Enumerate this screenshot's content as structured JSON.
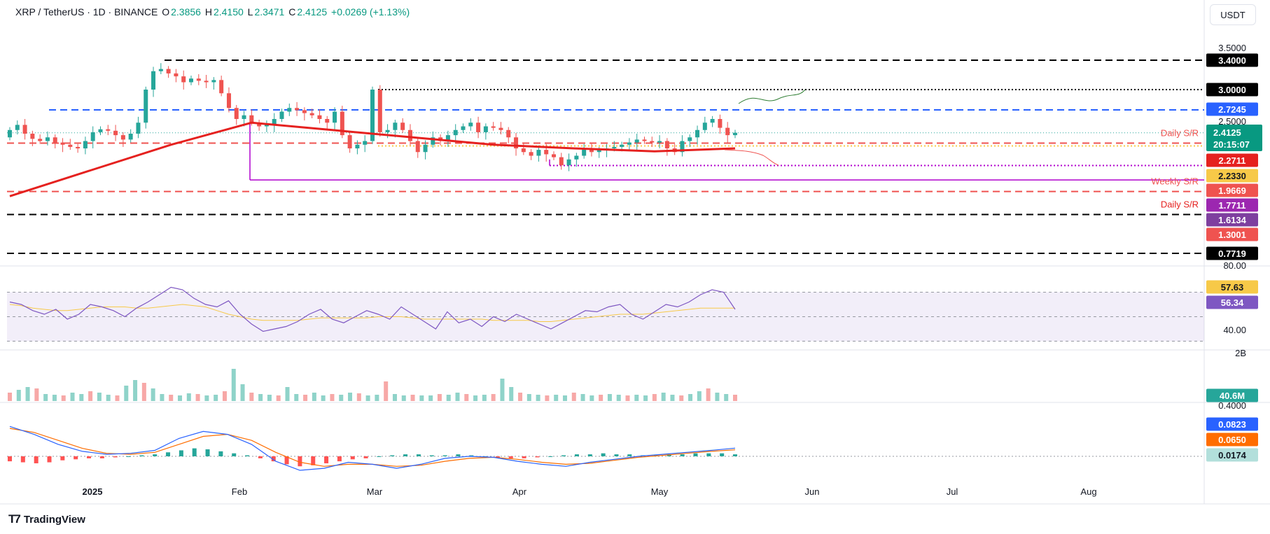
{
  "header": {
    "symbol": "XRP / TetherUS · 1D · BINANCE",
    "open_label": "O",
    "open": "2.3856",
    "high_label": "H",
    "high": "2.4150",
    "low_label": "L",
    "low": "2.3471",
    "close_label": "C",
    "close": "2.4125",
    "change": "+0.0269 (+1.13%)"
  },
  "currency_button": "USDT",
  "brand": "TradingView",
  "colors": {
    "up": "#26a69a",
    "down": "#ef5350",
    "ma": "#e5211f",
    "rsi": "#7e57c2",
    "rsi_ma": "#f7c948",
    "macd": "#2962ff",
    "signal": "#ff6d00",
    "support_line": "#b100cd",
    "resistance_blue": "#2962ff"
  },
  "chart_data": [
    {
      "type": "candlestick",
      "pane": "price",
      "symbol": "XRP / TetherUS",
      "timeframe": "1D",
      "ylim": [
        0.7,
        3.55
      ],
      "x_ticks": [
        "2025",
        "Feb",
        "Mar",
        "Apr",
        "May",
        "Jun",
        "Jul",
        "Aug"
      ],
      "y_ticks": [
        "3.5000",
        "2.5000"
      ],
      "current_price": "2.4125",
      "countdown": "20:15:07",
      "candles_approx_close": [
        2.45,
        2.52,
        2.4,
        2.33,
        2.3,
        2.35,
        2.28,
        2.25,
        2.22,
        2.2,
        2.3,
        2.42,
        2.46,
        2.44,
        2.38,
        2.32,
        2.4,
        2.55,
        3.0,
        3.25,
        3.28,
        3.22,
        3.18,
        3.1,
        3.15,
        3.12,
        3.1,
        3.13,
        2.95,
        2.75,
        2.6,
        2.65,
        2.55,
        2.5,
        2.52,
        2.6,
        2.7,
        2.75,
        2.72,
        2.68,
        2.65,
        2.6,
        2.55,
        2.7,
        2.38,
        2.2,
        2.25,
        2.3,
        3.0,
        2.42,
        2.45,
        2.55,
        2.45,
        2.3,
        2.15,
        2.25,
        2.35,
        2.3,
        2.38,
        2.45,
        2.5,
        2.55,
        2.42,
        2.5,
        2.48,
        2.45,
        2.35,
        2.2,
        2.15,
        2.1,
        2.18,
        2.12,
        2.08,
        1.97,
        2.05,
        2.1,
        2.2,
        2.15,
        2.18,
        2.2,
        2.22,
        2.25,
        2.28,
        2.32,
        2.3,
        2.28,
        2.3,
        2.2,
        2.15,
        2.3,
        2.35,
        2.45,
        2.55,
        2.6,
        2.48,
        2.38,
        2.4125
      ],
      "moving_average": {
        "name": "",
        "approx_values": [
          1.55,
          1.9,
          2.25,
          2.55,
          2.45,
          2.35,
          2.25,
          2.2,
          2.16,
          2.2
        ]
      },
      "horizontal_levels": [
        {
          "value": "3.4000",
          "style": "dashed",
          "color": "#000000"
        },
        {
          "value": "3.0000",
          "style": "dotted",
          "color": "#000000"
        },
        {
          "value": "2.7245",
          "style": "dashed",
          "color": "#2962ff"
        },
        {
          "value": "2.2711",
          "style": "dashed",
          "color": "#ef5350",
          "label": "Daily S/R"
        },
        {
          "value": "2.2330",
          "style": "dotted",
          "color": "#f7c948"
        },
        {
          "value": "1.9669",
          "style": "dotted",
          "color": "#b100cd"
        },
        {
          "value": "1.7711",
          "style": "solid",
          "color": "#b100cd"
        },
        {
          "value": "1.6134",
          "style": "dashed",
          "color": "#ef5350",
          "label": "Weekly S/R"
        },
        {
          "value": "1.3001",
          "style": "dashed",
          "color": "#000000",
          "label": "Daily S/R"
        },
        {
          "value": "0.7719",
          "style": "dashed",
          "color": "#000000"
        }
      ]
    },
    {
      "type": "line",
      "pane": "rsi",
      "ylim": [
        25,
        85
      ],
      "y_ticks": [
        "80.00",
        "40.00"
      ],
      "series": [
        {
          "name": "",
          "last": "56.34"
        },
        {
          "name": "",
          "last": "57.63"
        }
      ]
    },
    {
      "type": "bar",
      "pane": "volume",
      "y_ticks": [
        "2B"
      ],
      "last": "40.6M"
    },
    {
      "type": "line",
      "pane": "macd",
      "y_ticks": [
        "0.4000"
      ],
      "series": [
        {
          "name": "",
          "last": "0.0823"
        },
        {
          "name": "",
          "last": "0.0650"
        }
      ],
      "histogram_last": "0.0174"
    }
  ]
}
